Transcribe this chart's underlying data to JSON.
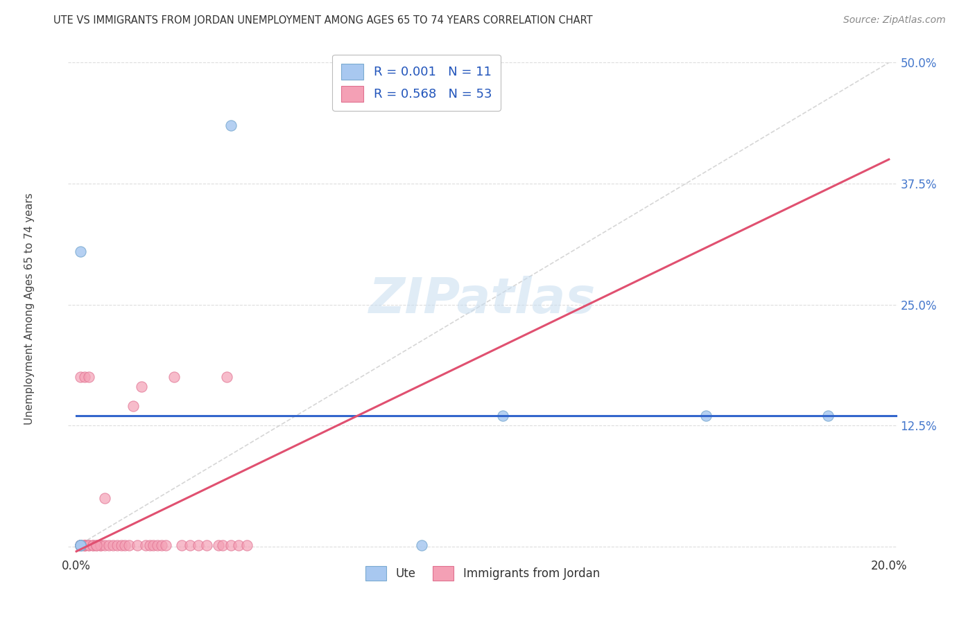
{
  "title": "UTE VS IMMIGRANTS FROM JORDAN UNEMPLOYMENT AMONG AGES 65 TO 74 YEARS CORRELATION CHART",
  "source": "Source: ZipAtlas.com",
  "ylabel": "Unemployment Among Ages 65 to 74 years",
  "xlim": [
    -0.002,
    0.202
  ],
  "ylim": [
    -0.01,
    0.52
  ],
  "xticks": [
    0.0,
    0.05,
    0.1,
    0.15,
    0.2
  ],
  "xticklabels": [
    "0.0%",
    "",
    "",
    "",
    "20.0%"
  ],
  "yticks": [
    0.0,
    0.125,
    0.25,
    0.375,
    0.5
  ],
  "yticklabels": [
    "",
    "12.5%",
    "25.0%",
    "37.5%",
    "50.0%"
  ],
  "ute_color": "#a8c8f0",
  "ute_edge_color": "#7aaad0",
  "jordan_color": "#f4a0b5",
  "jordan_edge_color": "#e07090",
  "trend_ute_color": "#3366cc",
  "trend_jordan_color": "#e05070",
  "diag_color": "#cccccc",
  "grid_color": "#dddddd",
  "ute_R": 0.001,
  "ute_N": 11,
  "jordan_R": 0.568,
  "jordan_N": 53,
  "legend_label_ute": "Ute",
  "legend_label_jordan": "Immigrants from Jordan",
  "watermark_color": "#c8ddf0",
  "background_color": "#ffffff",
  "ytick_color": "#4477cc",
  "xtick_color": "#333333",
  "ylabel_color": "#444444",
  "title_color": "#333333",
  "source_color": "#888888",
  "legend_text_color": "#2255bb",
  "ute_x": [
    0.001,
    0.001,
    0.001,
    0.001,
    0.001,
    0.001,
    0.038,
    0.085,
    0.105,
    0.155,
    0.185
  ],
  "ute_y": [
    0.001,
    0.001,
    0.001,
    0.001,
    0.001,
    0.305,
    0.435,
    0.001,
    0.135,
    0.135,
    0.135
  ],
  "jordan_x": [
    0.001,
    0.001,
    0.001,
    0.001,
    0.001,
    0.001,
    0.001,
    0.001,
    0.001,
    0.001,
    0.002,
    0.002,
    0.002,
    0.002,
    0.002,
    0.003,
    0.003,
    0.004,
    0.004,
    0.005,
    0.006,
    0.006,
    0.007,
    0.007,
    0.008,
    0.009,
    0.01,
    0.011,
    0.012,
    0.013,
    0.014,
    0.015,
    0.016,
    0.017,
    0.018,
    0.019,
    0.02,
    0.021,
    0.022,
    0.024,
    0.026,
    0.028,
    0.03,
    0.032,
    0.035,
    0.036,
    0.037,
    0.038,
    0.04,
    0.042,
    0.001,
    0.003,
    0.005
  ],
  "jordan_y": [
    0.001,
    0.001,
    0.001,
    0.001,
    0.001,
    0.001,
    0.001,
    0.001,
    0.001,
    0.175,
    0.001,
    0.001,
    0.001,
    0.001,
    0.175,
    0.001,
    0.001,
    0.001,
    0.001,
    0.001,
    0.001,
    0.001,
    0.001,
    0.05,
    0.001,
    0.001,
    0.001,
    0.001,
    0.001,
    0.001,
    0.145,
    0.001,
    0.165,
    0.001,
    0.001,
    0.001,
    0.001,
    0.001,
    0.001,
    0.175,
    0.001,
    0.001,
    0.001,
    0.001,
    0.001,
    0.001,
    0.175,
    0.001,
    0.001,
    0.001,
    0.001,
    0.175,
    0.001
  ],
  "jordan_trend_x0": 0.0,
  "jordan_trend_y0": -0.005,
  "jordan_trend_x1": 0.2,
  "jordan_trend_y1": 0.4,
  "ute_trend_y": 0.135
}
